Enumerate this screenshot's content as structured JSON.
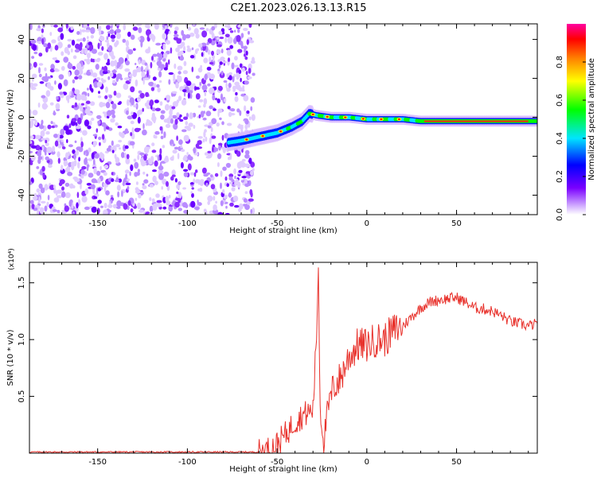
{
  "title": "C2E1.2023.026.13.13.R15",
  "chart_data": [
    {
      "type": "heatmap",
      "xlabel": "Height of straight line (km)",
      "ylabel": "Frequency (Hz)",
      "xlim": [
        -188,
        95
      ],
      "ylim": [
        -50,
        48
      ],
      "x_ticks": [
        -150,
        -100,
        -50,
        0,
        50
      ],
      "y_ticks": [
        -40,
        -20,
        0,
        20,
        40
      ],
      "colorbar": {
        "label": "Normalized spectral amplitude",
        "range": [
          0,
          1
        ],
        "ticks": [
          0.0,
          0.2,
          0.4,
          0.6,
          0.8
        ],
        "colors": [
          "#ffffff",
          "#d7b8ff",
          "#7a00ff",
          "#0000ff",
          "#00e5ff",
          "#00ff00",
          "#ffff00",
          "#ff8000",
          "#ff0000",
          "#ff00a0"
        ]
      },
      "noise_region": {
        "x": [
          -188,
          -63
        ],
        "y": [
          -50,
          48
        ]
      },
      "signal_trace": {
        "x": [
          -77,
          -70,
          -60,
          -50,
          -42,
          -36,
          -32,
          -28,
          -20,
          -10,
          0,
          10,
          20,
          30,
          50,
          70,
          95
        ],
        "frequency": [
          -13,
          -12,
          -10,
          -8,
          -5,
          -2,
          2,
          1,
          0,
          0,
          -1,
          -1,
          -1,
          -2,
          -2,
          -2,
          -2
        ]
      },
      "grid": false
    },
    {
      "type": "line",
      "xlabel": "Height of straight line (km)",
      "ylabel": "SNR (10 * v/v)",
      "scale_note": "(x10⁴)",
      "xlim": [
        -188,
        95
      ],
      "ylim": [
        0,
        1.68
      ],
      "x_ticks": [
        -150,
        -100,
        -50,
        0,
        50
      ],
      "y_ticks": [
        0.5,
        1.0,
        1.5
      ],
      "y_tick_labels": [
        "0.5",
        "1.0",
        "1.5"
      ],
      "series": [
        {
          "color": "#e8322c",
          "x": [
            -188,
            -150,
            -100,
            -60,
            -55,
            -50,
            -45,
            -40,
            -35,
            -30,
            -28,
            -27,
            -26,
            -24,
            -22,
            -20,
            -18,
            -15,
            -10,
            -5,
            0,
            5,
            10,
            15,
            20,
            25,
            30,
            35,
            40,
            45,
            50,
            55,
            60,
            65,
            70,
            75,
            80,
            85,
            90,
            95
          ],
          "y": [
            0.01,
            0.01,
            0.01,
            0.01,
            0.03,
            0.08,
            0.17,
            0.28,
            0.34,
            0.38,
            1.05,
            1.65,
            0.4,
            0.1,
            0.35,
            0.5,
            0.6,
            0.65,
            0.85,
            0.95,
            0.95,
            1.0,
            1.0,
            1.08,
            1.12,
            1.2,
            1.28,
            1.33,
            1.35,
            1.36,
            1.37,
            1.33,
            1.28,
            1.27,
            1.25,
            1.21,
            1.16,
            1.14,
            1.12,
            1.14
          ]
        }
      ],
      "grid": false
    }
  ]
}
